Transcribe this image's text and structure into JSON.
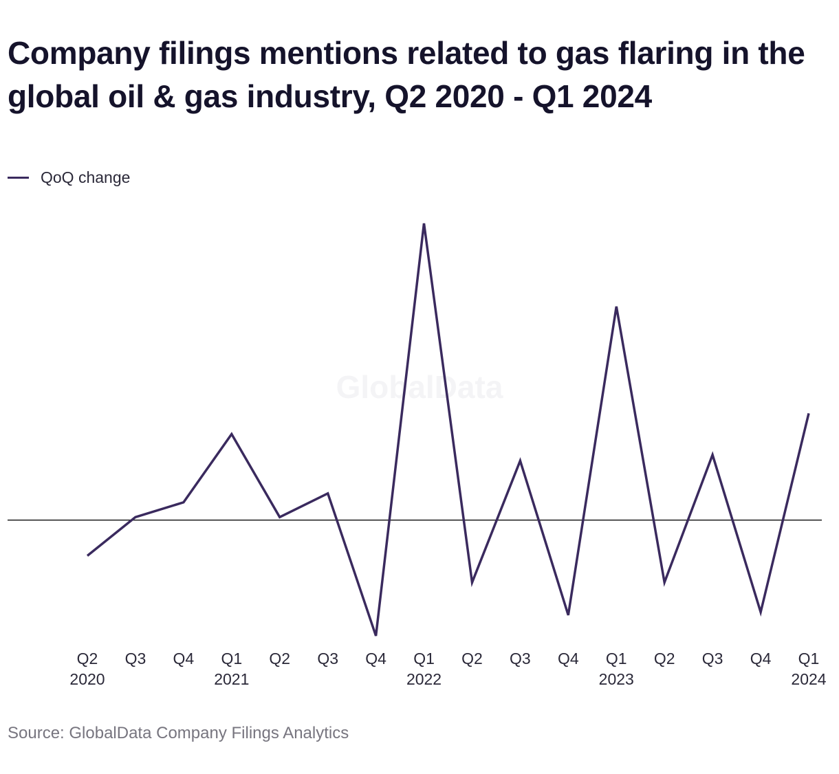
{
  "title": "Company filings mentions related to gas flaring in the global oil & gas industry, Q2 2020 - Q1 2024",
  "source": "Source: GlobalData Company Filings Analytics",
  "watermark": "GlobalData",
  "colors": {
    "line": "#3a2a5e",
    "zero_line": "#1a1a1a",
    "title": "#15132b",
    "source": "#77757f"
  },
  "chart_data": {
    "type": "line",
    "title": "Company filings mentions related to gas flaring in the global oil & gas industry, Q2 2020 - Q1 2024",
    "xlabel": "",
    "ylabel": "",
    "categories": [
      [
        "Q2",
        "2020"
      ],
      [
        "Q3",
        ""
      ],
      [
        "Q4",
        ""
      ],
      [
        "Q1",
        "2021"
      ],
      [
        "Q2",
        ""
      ],
      [
        "Q3",
        ""
      ],
      [
        "Q4",
        ""
      ],
      [
        "Q1",
        "2022"
      ],
      [
        "Q2",
        ""
      ],
      [
        "Q3",
        ""
      ],
      [
        "Q4",
        ""
      ],
      [
        "Q1",
        "2023"
      ],
      [
        "Q2",
        ""
      ],
      [
        "Q3",
        ""
      ],
      [
        "Q4",
        ""
      ],
      [
        "Q1",
        "2024"
      ]
    ],
    "series": [
      {
        "name": "QoQ change",
        "values": [
          -12,
          1,
          6,
          29,
          1,
          9,
          -39,
          100,
          -21,
          20,
          -32,
          72,
          -21,
          22,
          -31,
          36
        ]
      }
    ],
    "ylim": [
      -39,
      100
    ],
    "grid": false,
    "zero_line": true,
    "legend_position": "top-left"
  }
}
